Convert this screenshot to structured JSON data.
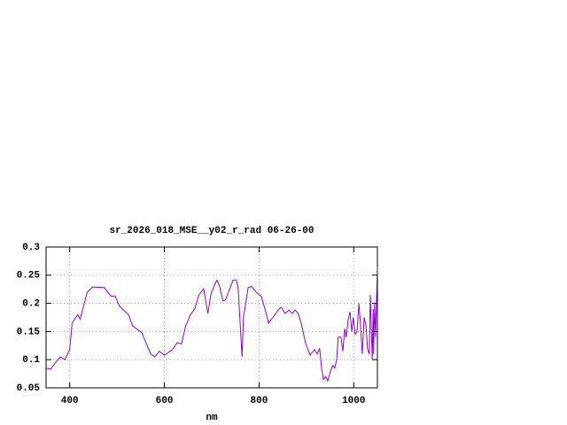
{
  "chart_data": {
    "type": "line",
    "title": "sr_2026_018_MSE__y02_r_rad 06-26-00",
    "x_label": "nm",
    "x": [
      350,
      360,
      370,
      380,
      390,
      400,
      405,
      417,
      422,
      437,
      448,
      473,
      487,
      496,
      505,
      524,
      533,
      552,
      571,
      580,
      589,
      600,
      617,
      627,
      636,
      645,
      655,
      664,
      673,
      683,
      688,
      692,
      698,
      707,
      711,
      716,
      724,
      729,
      739,
      745,
      752,
      756,
      760,
      764,
      767,
      777,
      784,
      796,
      805,
      814,
      820,
      829,
      842,
      847,
      855,
      863,
      870,
      876,
      882,
      889,
      898,
      908,
      917,
      923,
      928,
      932,
      936,
      941,
      945,
      951,
      956,
      960,
      964,
      967,
      973,
      977,
      981,
      984,
      988,
      992,
      996,
      999,
      1003,
      1007,
      1011,
      1014,
      1018,
      1022,
      1026,
      1029,
      1033,
      1035,
      1039,
      1041,
      1042,
      1044,
      1046,
      1050
    ],
    "series": [
      {
        "color": "#9400d3",
        "values": [
          0.085,
          0.083,
          0.095,
          0.105,
          0.1,
          0.118,
          0.165,
          0.18,
          0.172,
          0.22,
          0.229,
          0.228,
          0.213,
          0.213,
          0.195,
          0.18,
          0.16,
          0.148,
          0.11,
          0.105,
          0.115,
          0.108,
          0.118,
          0.13,
          0.128,
          0.16,
          0.18,
          0.19,
          0.215,
          0.226,
          0.2,
          0.182,
          0.215,
          0.235,
          0.241,
          0.232,
          0.204,
          0.206,
          0.228,
          0.241,
          0.242,
          0.225,
          0.165,
          0.105,
          0.175,
          0.228,
          0.23,
          0.218,
          0.212,
          0.185,
          0.165,
          0.175,
          0.19,
          0.193,
          0.182,
          0.188,
          0.182,
          0.188,
          0.183,
          0.165,
          0.13,
          0.108,
          0.118,
          0.11,
          0.12,
          0.085,
          0.065,
          0.07,
          0.062,
          0.08,
          0.09,
          0.085,
          0.1,
          0.14,
          0.14,
          0.115,
          0.155,
          0.14,
          0.17,
          0.185,
          0.15,
          0.175,
          0.145,
          0.15,
          0.2,
          0.165,
          0.11,
          0.175,
          0.16,
          0.12,
          0.11,
          0.215,
          0.1,
          0.19,
          0.11,
          0.2,
          0.14,
          0.265
        ]
      }
    ],
    "xlim": [
      350,
      1050
    ],
    "xticks": [
      400,
      600,
      800,
      1000
    ],
    "ylim": [
      0.05,
      0.3
    ],
    "yticks": [
      0.05,
      0.1,
      0.15,
      0.2,
      0.25,
      0.3
    ],
    "grid": true
  }
}
